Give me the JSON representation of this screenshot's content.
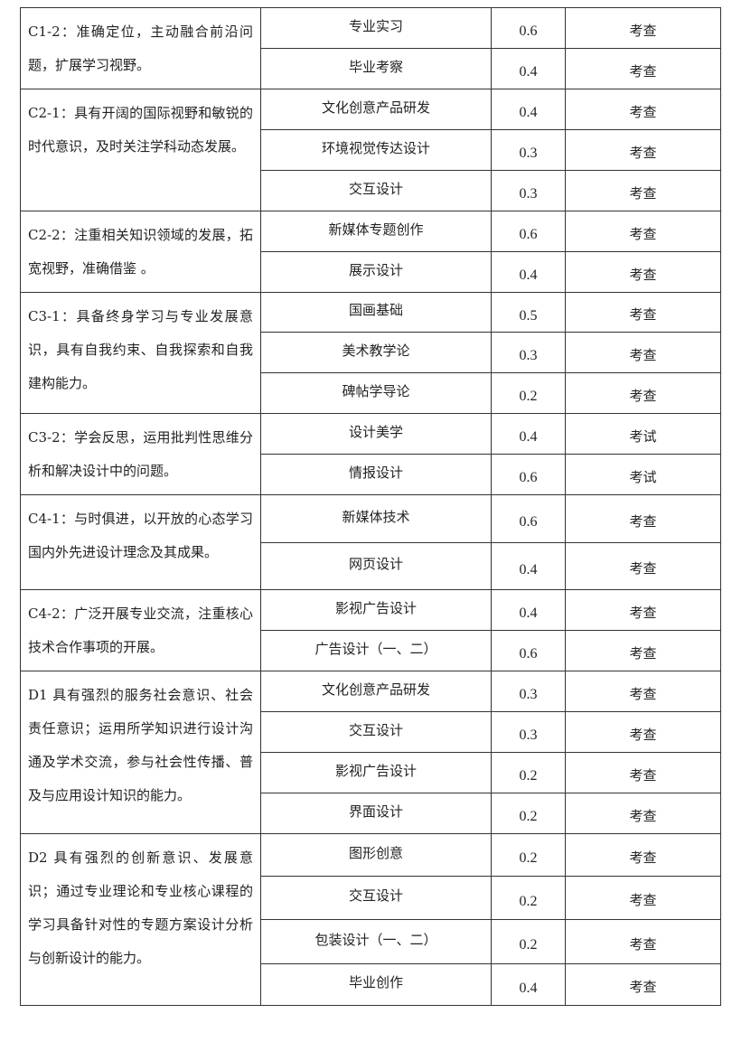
{
  "groups": [
    {
      "objective": "C1-2：准确定位，主动融合前沿问题，扩展学习视野。",
      "rows": [
        {
          "course": "专业实习",
          "weight": "0.6",
          "method": "考查"
        },
        {
          "course": "毕业考察",
          "weight": "0.4",
          "method": "考查"
        }
      ]
    },
    {
      "objective": "C2-1：具有开阔的国际视野和敏锐的时代意识，及时关注学科动态发展。",
      "rows": [
        {
          "course": "文化创意产品研发",
          "weight": "0.4",
          "method": "考查"
        },
        {
          "course": "环境视觉传达设计",
          "weight": "0.3",
          "method": "考查"
        },
        {
          "course": "交互设计",
          "weight": "0.3",
          "method": "考查"
        }
      ]
    },
    {
      "objective": "C2-2：注重相关知识领域的发展，拓宽视野，准确借鉴 。",
      "rows": [
        {
          "course": "新媒体专题创作",
          "weight": "0.6",
          "method": "考查"
        },
        {
          "course": "展示设计",
          "weight": "0.4",
          "method": "考查"
        }
      ]
    },
    {
      "objective": "C3-1：具备终身学习与专业发展意识，具有自我约束、自我探索和自我建构能力。",
      "rows": [
        {
          "course": "国画基础",
          "weight": "0.5",
          "method": "考查"
        },
        {
          "course": "美术教学论",
          "weight": "0.3",
          "method": "考查"
        },
        {
          "course": "碑帖学导论",
          "weight": "0.2",
          "method": "考查"
        }
      ]
    },
    {
      "objective": "C3-2：学会反思，运用批判性思维分析和解决设计中的问题。",
      "rows": [
        {
          "course": "设计美学",
          "weight": "0.4",
          "method": "考试"
        },
        {
          "course": "情报设计",
          "weight": "0.6",
          "method": "考试"
        }
      ]
    },
    {
      "objective": "C4-1：与时俱进，以开放的心态学习国内外先进设计理念及其成果。",
      "rows": [
        {
          "course": "新媒体技术",
          "weight": "0.6",
          "method": "考查"
        },
        {
          "course": "网页设计",
          "weight": "0.4",
          "method": "考查"
        }
      ]
    },
    {
      "objective": "C4-2：广泛开展专业交流，注重核心技术合作事项的开展。",
      "rows": [
        {
          "course": "影视广告设计",
          "weight": "0.4",
          "method": "考查"
        },
        {
          "course": "广告设计（一、二）",
          "weight": "0.6",
          "method": "考查"
        }
      ]
    },
    {
      "objective": "D1 具有强烈的服务社会意识、社会 责任意识；运用所学知识进行设计沟通及学术交流，参与社会性传播、普及与应用设计知识的能力。",
      "rows": [
        {
          "course": "文化创意产品研发",
          "weight": "0.3",
          "method": "考查"
        },
        {
          "course": "交互设计",
          "weight": "0.3",
          "method": "考查"
        },
        {
          "course": "影视广告设计",
          "weight": "0.2",
          "method": "考查"
        },
        {
          "course": "界面设计",
          "weight": "0.2",
          "method": "考查"
        }
      ]
    },
    {
      "objective": "D2 具有强烈的创新意识、发展意识；通过专业理论和专业核心课程的学习具备针对性的专题方案设计分析与创新设计的能力。",
      "rows": [
        {
          "course": "图形创意",
          "weight": "0.2",
          "method": "考查"
        },
        {
          "course": "交互设计",
          "weight": "0.2",
          "method": "考查"
        },
        {
          "course": "包装设计（一、二）",
          "weight": "0.2",
          "method": "考查"
        },
        {
          "course": "毕业创作",
          "weight": "0.4",
          "method": "考查"
        }
      ]
    }
  ]
}
